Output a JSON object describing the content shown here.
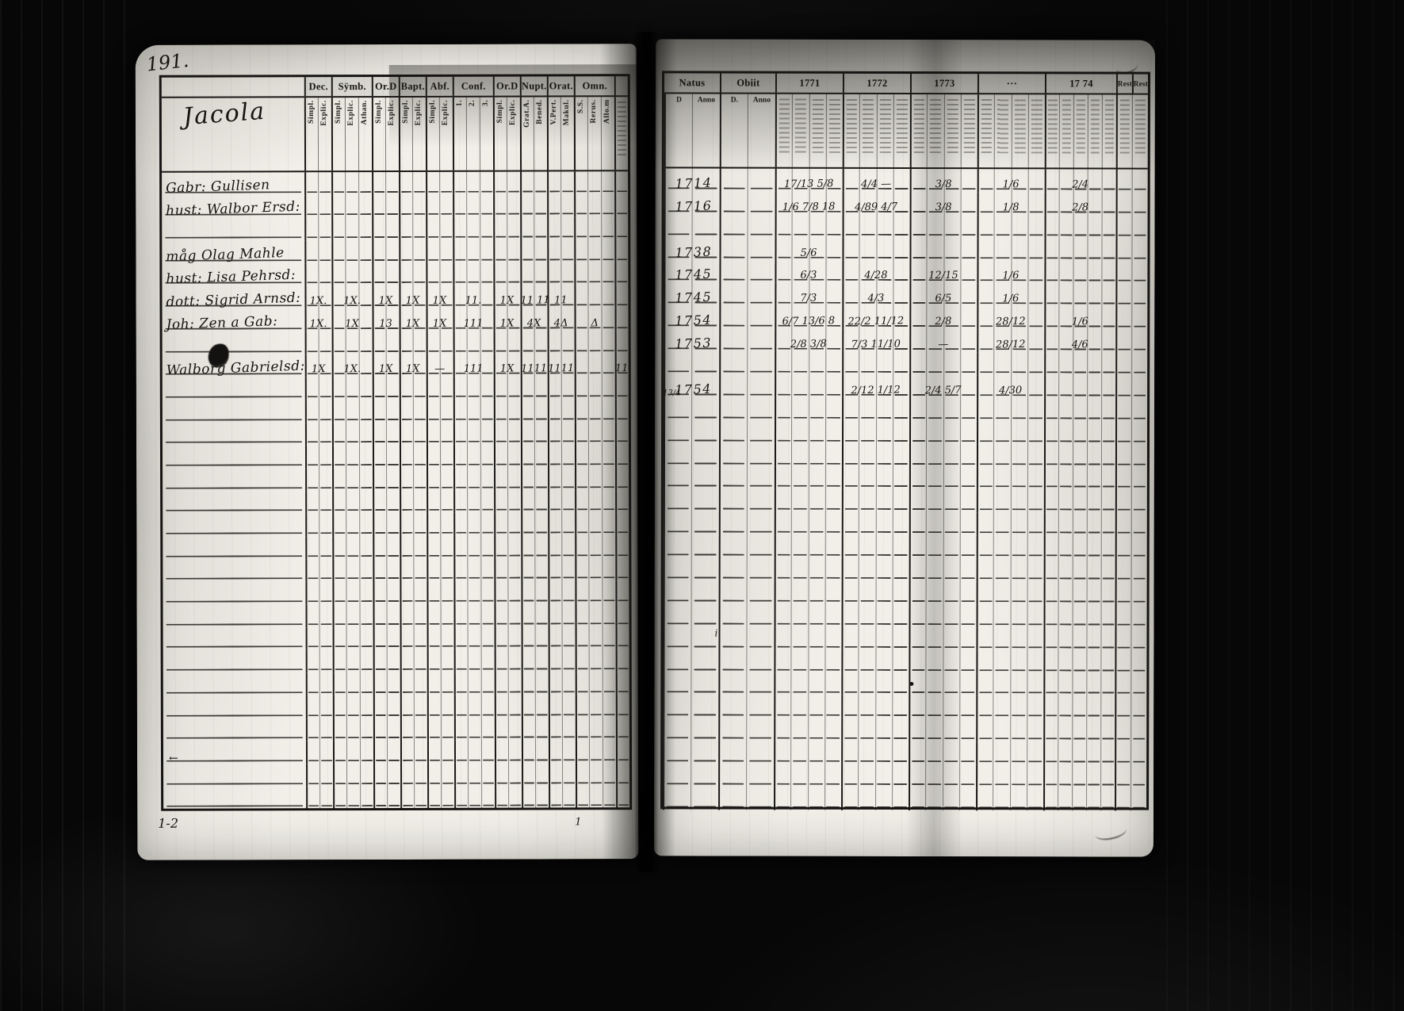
{
  "scan": {
    "page_number": "191.",
    "footer_mark_left": "1-2",
    "footer_mark_center": "1",
    "stray_mark_i": "i",
    "margin_arrow": "←"
  },
  "left_page": {
    "heading_script": "Jacola",
    "groups": [
      {
        "label": "Dec.",
        "subs": [
          "Simpl.",
          "Explic."
        ]
      },
      {
        "label": "Sÿmb.",
        "subs": [
          "Simpl.",
          "Explic.",
          "Athan."
        ]
      },
      {
        "label": "Or.D",
        "subs": [
          "Simpl.",
          "Explic."
        ]
      },
      {
        "label": "Bapt.",
        "subs": [
          "Simpl.",
          "Explic."
        ]
      },
      {
        "label": "Abf.",
        "subs": [
          "Simpl.",
          "Explic."
        ]
      },
      {
        "label": "Conf.",
        "subs": [
          "1.",
          "2.",
          "3."
        ]
      },
      {
        "label": "Or.D",
        "subs": [
          "Simpl.",
          "Explic."
        ]
      },
      {
        "label": "Nupt.",
        "subs": [
          "Grat.A.",
          "Bened."
        ]
      },
      {
        "label": "Orat.",
        "subs": [
          "V.Pert.",
          "Makul."
        ]
      },
      {
        "label": "Omn.",
        "subs": [
          "S.S.",
          "Rerus.",
          "Allo.m"
        ]
      },
      {
        "label": "",
        "subs": [
          "···"
        ]
      }
    ],
    "row_count": 28,
    "rows": [
      {
        "i": 0,
        "name": "Gabr: Gullisen"
      },
      {
        "i": 1,
        "name": "hust: Walbor Ersd:"
      },
      {
        "i": 3,
        "name": "måg Olag Mahle"
      },
      {
        "i": 4,
        "name": "hust: Lisa Pehrsd:"
      },
      {
        "i": 5,
        "name": "dott: Sigrid Arnsd:",
        "marks": [
          "1X.",
          "1X.",
          "1X",
          "1X",
          "1X",
          "11.",
          "1X",
          "11 11",
          "11",
          "",
          ""
        ]
      },
      {
        "i": 6,
        "name": "Joh: Zen a Gab:",
        "marks": [
          "1X.",
          "1X",
          "13",
          "1X",
          "1X",
          "111",
          "1X",
          "4X",
          "4Δ",
          "Δ",
          ""
        ]
      },
      {
        "i": 8,
        "name": "Walborg Gabrielsd:",
        "blot": true,
        "marks": [
          "1X",
          "1X.",
          "1X",
          "1X",
          "—",
          "111",
          "1X",
          "1111",
          "1111",
          "",
          "11"
        ]
      }
    ]
  },
  "right_page": {
    "groups": [
      {
        "label": "Natus",
        "kind": "date",
        "subs": [
          "D",
          "Anno"
        ]
      },
      {
        "label": "Obiit",
        "kind": "date",
        "subs": [
          "D.",
          "Anno"
        ]
      },
      {
        "label": "1771",
        "subs": [
          "···",
          "···",
          "···",
          "···"
        ]
      },
      {
        "label": "1772",
        "subs": [
          "···",
          "···",
          "···",
          "···"
        ]
      },
      {
        "label": "1773",
        "subs": [
          "···",
          "···",
          "···",
          "···"
        ]
      },
      {
        "label": "···",
        "subs": [
          "···",
          "···",
          "···",
          "···"
        ]
      },
      {
        "label": "17 74",
        "subs": [
          "···",
          "···",
          "···",
          "···",
          "···"
        ]
      },
      {
        "label": "Rest",
        "labels": [
          "Rest",
          "Rest"
        ],
        "subs": [
          "···",
          "···"
        ]
      }
    ],
    "row_count": 28,
    "rows": [
      {
        "i": 0,
        "year": "1714",
        "marks": [
          "17/13 5/8",
          "4/4 —",
          "3/8",
          "1/6",
          "2/4",
          ""
        ]
      },
      {
        "i": 1,
        "year": "1716",
        "marks": [
          "1/6 7/8 18",
          "4/89 4/7",
          "3/8",
          "1/8",
          "2/8",
          ""
        ]
      },
      {
        "i": 3,
        "year": "1738",
        "marks": [
          "5/6",
          "",
          "",
          "",
          "",
          ""
        ]
      },
      {
        "i": 4,
        "year": "1745",
        "marks": [
          "6/3",
          "4/28",
          "12/15",
          "1/6",
          "",
          ""
        ]
      },
      {
        "i": 5,
        "year": "1745",
        "marks": [
          "7/3",
          "4/3",
          "6/5",
          "1/6",
          "",
          ""
        ]
      },
      {
        "i": 6,
        "year": "1754",
        "marks": [
          "6/7 13/6 8",
          "22/2 11/12",
          "2/8",
          "28/12",
          "1/6",
          ""
        ]
      },
      {
        "i": 7,
        "year": "1753",
        "marks": [
          "2/8 3/8",
          "7/3 11/10",
          "—",
          "28/12",
          "4/6",
          ""
        ]
      },
      {
        "i": 9,
        "year": "1754",
        "margin": "13/4",
        "marks": [
          "",
          "2/12 1/12",
          "2/4 5/7",
          "4/30",
          "",
          ""
        ]
      }
    ]
  }
}
